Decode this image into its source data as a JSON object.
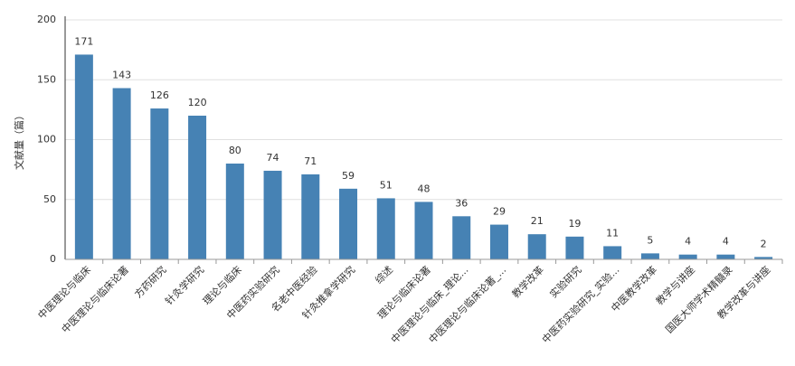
{
  "chart_data": {
    "type": "bar",
    "y_label": "文献量（篇）",
    "categories": [
      "中医理论与临床",
      "中医理论与临床论著",
      "方药研究",
      "针灸学研究",
      "理论与临床",
      "中医药实验研究",
      "名老中医经验",
      "针灸推拿学研究",
      "综述",
      "理论与临床论著",
      "中医理论与临床_理论...",
      "中医理论与临床论著_...",
      "教学改革",
      "实验研究",
      "中医药实验研究_实验...",
      "中医教学改革",
      "教学与讲座",
      "国医大师学术精髓录",
      "教学改革与讲座"
    ],
    "values": [
      171,
      143,
      126,
      120,
      80,
      74,
      71,
      59,
      51,
      48,
      36,
      29,
      21,
      19,
      11,
      5,
      4,
      4,
      2
    ],
    "color": "#4682b4",
    "ylim": [
      0,
      200
    ],
    "yticks": [
      0,
      50,
      100,
      150,
      200
    ],
    "grid": true
  }
}
